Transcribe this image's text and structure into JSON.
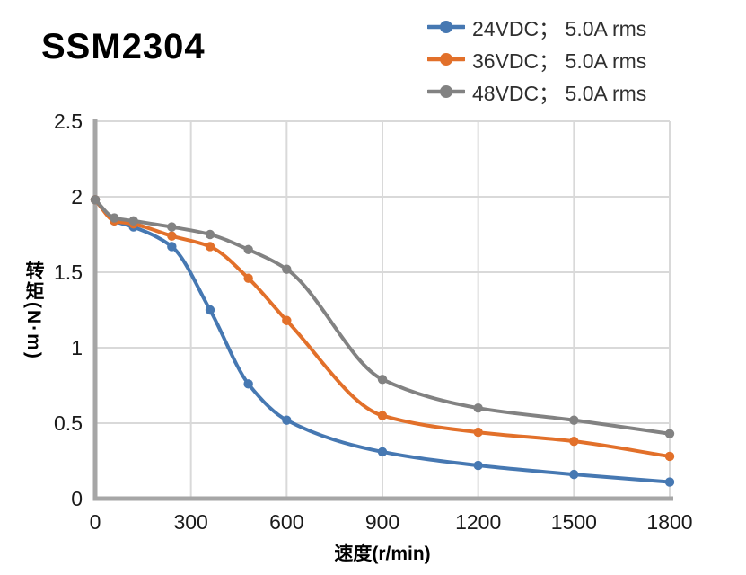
{
  "page": {
    "title": "SSM2304"
  },
  "chart_data": {
    "type": "line",
    "title": "SSM2304",
    "xlabel": "速度(r/min)",
    "ylabel": "转矩(N·m)",
    "xlim": [
      0,
      1800
    ],
    "ylim": [
      0,
      2.5
    ],
    "xticks": [
      0,
      300,
      600,
      900,
      1200,
      1500,
      1800
    ],
    "xtick_labels": [
      "0",
      "300",
      "600",
      "900",
      "1200",
      "1500",
      "1800"
    ],
    "yticks": [
      0,
      0.5,
      1,
      1.5,
      2,
      2.5
    ],
    "ytick_labels": [
      "0",
      "0.5",
      "1",
      "1.5",
      "2",
      "2.5"
    ],
    "grid": true,
    "legend_position": "top-right",
    "line_style": "smooth-with-markers",
    "x": [
      0,
      60,
      120,
      240,
      360,
      480,
      600,
      900,
      1200,
      1500,
      1800
    ],
    "series": [
      {
        "name": "24VDC； 5.0A rms",
        "color": "#4678b2",
        "values": [
          1.98,
          1.84,
          1.8,
          1.67,
          1.25,
          0.76,
          0.52,
          0.31,
          0.22,
          0.16,
          0.11
        ]
      },
      {
        "name": "36VDC； 5.0A rms",
        "color": "#e2702a",
        "values": [
          1.98,
          1.84,
          1.82,
          1.74,
          1.67,
          1.46,
          1.18,
          0.55,
          0.44,
          0.38,
          0.28
        ]
      },
      {
        "name": "48VDC； 5.0A rms",
        "color": "#828282",
        "values": [
          1.98,
          1.86,
          1.84,
          1.8,
          1.75,
          1.65,
          1.52,
          0.79,
          0.6,
          0.52,
          0.43
        ]
      }
    ],
    "colors": {
      "grid": "#d9d9d9",
      "axis": "#a6a6a6",
      "tick_text": "#1a1a1a",
      "title_text": "#000000",
      "legend_text": "#2f2f2f",
      "background": "#ffffff"
    }
  }
}
